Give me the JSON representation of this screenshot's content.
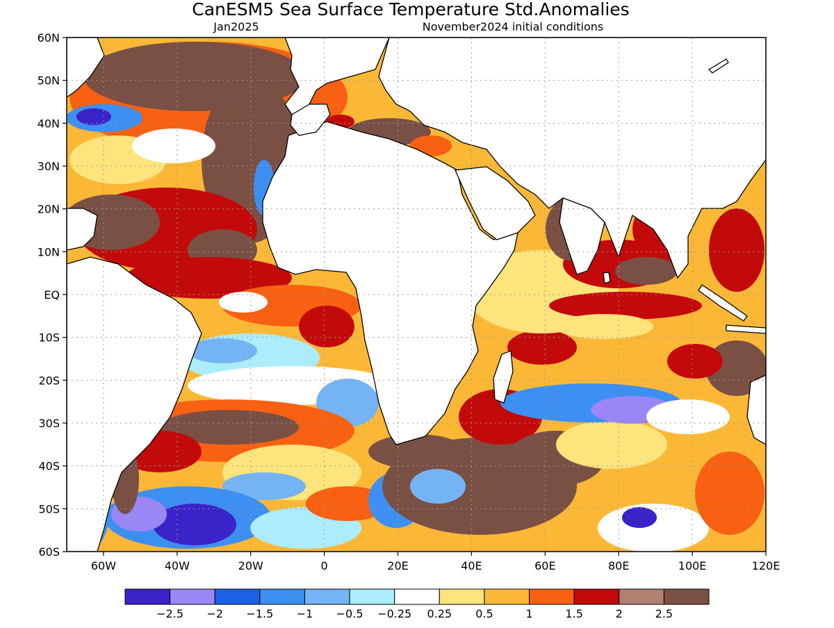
{
  "title": "CanESM5 Sea Surface Temperature Std.Anomalies",
  "subtitle_left": "Jan2025",
  "subtitle_right": "November2024 initial conditions",
  "map": {
    "lon_range": [
      -70,
      120
    ],
    "lat_range": [
      -60,
      60
    ],
    "lat_ticks": [
      {
        "value": 60,
        "label": "60N"
      },
      {
        "value": 50,
        "label": "50N"
      },
      {
        "value": 40,
        "label": "40N"
      },
      {
        "value": 30,
        "label": "30N"
      },
      {
        "value": 20,
        "label": "20N"
      },
      {
        "value": 10,
        "label": "10N"
      },
      {
        "value": 0,
        "label": "EQ"
      },
      {
        "value": -10,
        "label": "10S"
      },
      {
        "value": -20,
        "label": "20S"
      },
      {
        "value": -30,
        "label": "30S"
      },
      {
        "value": -40,
        "label": "40S"
      },
      {
        "value": -50,
        "label": "50S"
      },
      {
        "value": -60,
        "label": "60S"
      }
    ],
    "lon_ticks": [
      {
        "value": -60,
        "label": "60W"
      },
      {
        "value": -40,
        "label": "40W"
      },
      {
        "value": -20,
        "label": "20W"
      },
      {
        "value": 0,
        "label": "0"
      },
      {
        "value": 20,
        "label": "20E"
      },
      {
        "value": 40,
        "label": "40E"
      },
      {
        "value": 60,
        "label": "60E"
      },
      {
        "value": 80,
        "label": "80E"
      },
      {
        "value": 100,
        "label": "100E"
      },
      {
        "value": 120,
        "label": "120E"
      }
    ],
    "grid": true
  },
  "legend": {
    "colors": [
      "#3a23c8",
      "#9b86f5",
      "#1b60e6",
      "#3d8ff2",
      "#74b4f5",
      "#acecfb",
      "#ffffff",
      "#fde47c",
      "#fbb837",
      "#f86012",
      "#c20a0a",
      "#b08070",
      "#7a5045"
    ],
    "labels": [
      "−2.5",
      "−2",
      "−1.5",
      "−1",
      "−0.5",
      "−0.25",
      "0.25",
      "0.5",
      "1",
      "1.5",
      "2",
      "2.5"
    ]
  },
  "colors": {
    "land": "#ffffff",
    "ocean_base": "#fbb837",
    "coast": "#000000",
    "gridline": "#9a9a9a"
  }
}
